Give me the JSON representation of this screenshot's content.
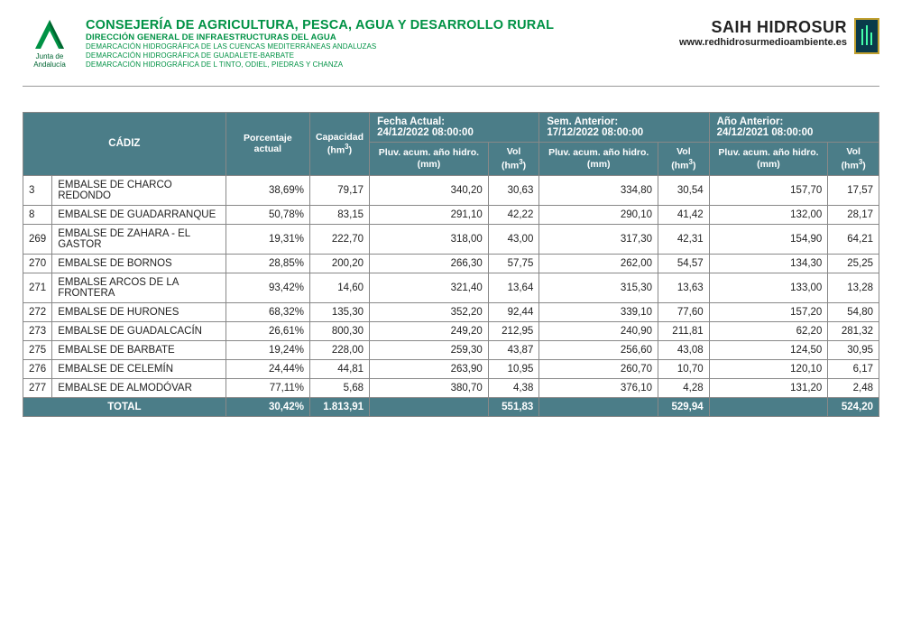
{
  "header": {
    "logo_caption": "Junta de Andalucía",
    "org_title": "CONSEJERÍA DE AGRICULTURA, PESCA, AGUA Y DESARROLLO RURAL",
    "org_sub": "DIRECCIÓN GENERAL DE INFRAESTRUCTURAS DEL AGUA",
    "org_lines": [
      "DEMARCACIÓN HIDROGRÁFICA DE LAS CUENCAS MEDITERRÁNEAS ANDALUZAS",
      "DEMARCACIÓN HIDROGRÁFICA DE GUADALETE-BARBATE",
      "DEMARCACIÓN HIDROGRÁFICA DE L TINTO, ODIEL, PIEDRAS Y CHANZA"
    ],
    "saih_title": "SAIH HIDROSUR",
    "saih_url": "www.redhidrosurmedioambiente.es"
  },
  "table": {
    "province": "CÁDIZ",
    "col_porcentaje": "Porcentaje actual",
    "col_capacidad_l1": "Capacidad",
    "col_capacidad_l2": "(hm³)",
    "group_actual": "Fecha Actual:",
    "group_actual_date": "24/12/2022 08:00:00",
    "group_sem": "Sem. Anterior:",
    "group_sem_date": "17/12/2022 08:00:00",
    "group_ano": "Año Anterior:",
    "group_ano_date": "24/12/2021 08:00:00",
    "col_pluv": "Pluv. acum. año hidro. (mm)",
    "col_vol": "Vol (hm³)",
    "rows": [
      {
        "id": "3",
        "name": "EMBALSE DE CHARCO REDONDO",
        "pct": "38,69%",
        "cap": "79,17",
        "pluv_a": "340,20",
        "vol_a": "30,63",
        "pluv_s": "334,80",
        "vol_s": "30,54",
        "pluv_y": "157,70",
        "vol_y": "17,57"
      },
      {
        "id": "8",
        "name": "EMBALSE DE GUADARRANQUE",
        "pct": "50,78%",
        "cap": "83,15",
        "pluv_a": "291,10",
        "vol_a": "42,22",
        "pluv_s": "290,10",
        "vol_s": "41,42",
        "pluv_y": "132,00",
        "vol_y": "28,17"
      },
      {
        "id": "269",
        "name": "EMBALSE DE ZAHARA - EL GASTOR",
        "pct": "19,31%",
        "cap": "222,70",
        "pluv_a": "318,00",
        "vol_a": "43,00",
        "pluv_s": "317,30",
        "vol_s": "42,31",
        "pluv_y": "154,90",
        "vol_y": "64,21"
      },
      {
        "id": "270",
        "name": "EMBALSE DE BORNOS",
        "pct": "28,85%",
        "cap": "200,20",
        "pluv_a": "266,30",
        "vol_a": "57,75",
        "pluv_s": "262,00",
        "vol_s": "54,57",
        "pluv_y": "134,30",
        "vol_y": "25,25"
      },
      {
        "id": "271",
        "name": "EMBALSE ARCOS DE LA FRONTERA",
        "pct": "93,42%",
        "cap": "14,60",
        "pluv_a": "321,40",
        "vol_a": "13,64",
        "pluv_s": "315,30",
        "vol_s": "13,63",
        "pluv_y": "133,00",
        "vol_y": "13,28"
      },
      {
        "id": "272",
        "name": "EMBALSE DE HURONES",
        "pct": "68,32%",
        "cap": "135,30",
        "pluv_a": "352,20",
        "vol_a": "92,44",
        "pluv_s": "339,10",
        "vol_s": "77,60",
        "pluv_y": "157,20",
        "vol_y": "54,80"
      },
      {
        "id": "273",
        "name": "EMBALSE DE GUADALCACÍN",
        "pct": "26,61%",
        "cap": "800,30",
        "pluv_a": "249,20",
        "vol_a": "212,95",
        "pluv_s": "240,90",
        "vol_s": "211,81",
        "pluv_y": "62,20",
        "vol_y": "281,32"
      },
      {
        "id": "275",
        "name": "EMBALSE DE BARBATE",
        "pct": "19,24%",
        "cap": "228,00",
        "pluv_a": "259,30",
        "vol_a": "43,87",
        "pluv_s": "256,60",
        "vol_s": "43,08",
        "pluv_y": "124,50",
        "vol_y": "30,95"
      },
      {
        "id": "276",
        "name": "EMBALSE DE CELEMÍN",
        "pct": "24,44%",
        "cap": "44,81",
        "pluv_a": "263,90",
        "vol_a": "10,95",
        "pluv_s": "260,70",
        "vol_s": "10,70",
        "pluv_y": "120,10",
        "vol_y": "6,17"
      },
      {
        "id": "277",
        "name": "EMBALSE DE ALMODÓVAR",
        "pct": "77,11%",
        "cap": "5,68",
        "pluv_a": "380,70",
        "vol_a": "4,38",
        "pluv_s": "376,10",
        "vol_s": "4,28",
        "pluv_y": "131,20",
        "vol_y": "2,48"
      }
    ],
    "total": {
      "label": "TOTAL",
      "pct": "30,42%",
      "cap": "1.813,91",
      "vol_a": "551,83",
      "vol_s": "529,94",
      "vol_y": "524,20"
    }
  },
  "style": {
    "header_bg": "#4b7d88",
    "header_fg": "#ffffff",
    "org_green": "#009245",
    "border_color": "#888888",
    "row_bg": "#ffffff"
  }
}
